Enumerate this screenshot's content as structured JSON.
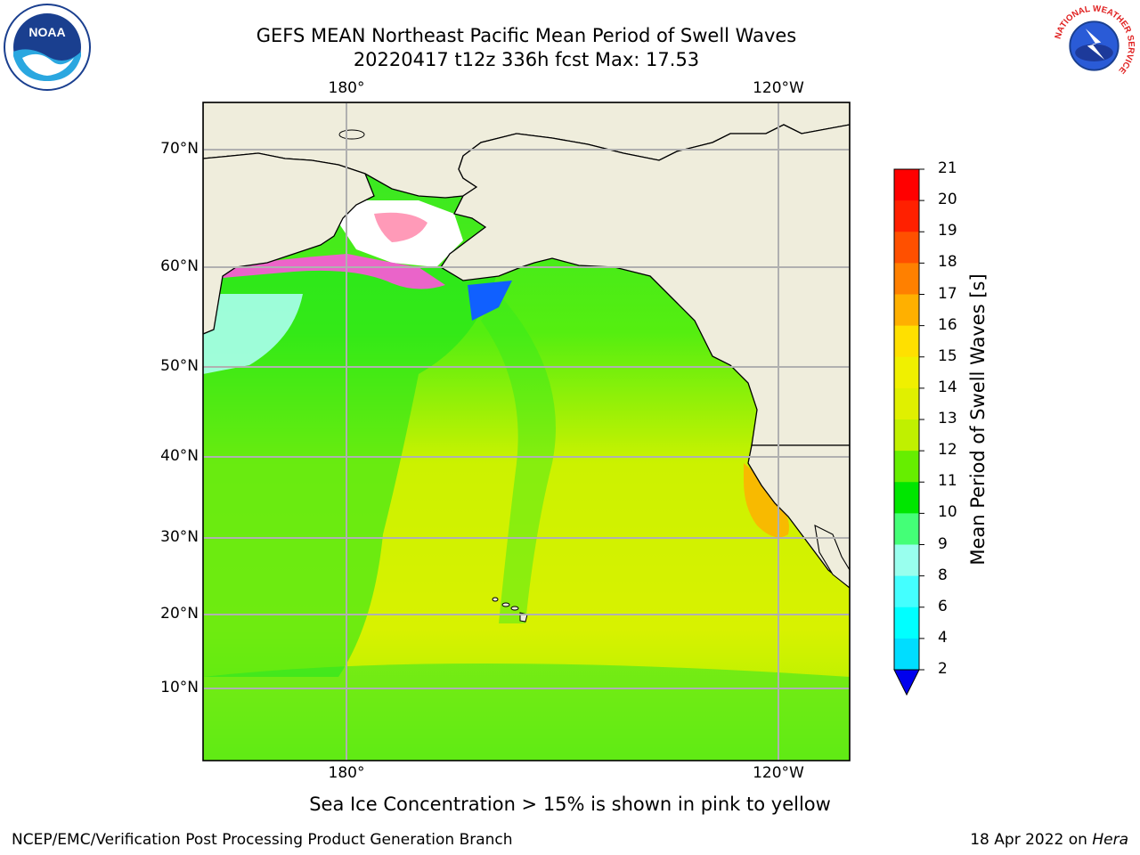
{
  "title_line1": "GEFS MEAN Northeast Pacific Mean Period of Swell Waves",
  "title_line2": "20220417 t12z 336h fcst   Max: 17.53",
  "lon_labels": {
    "top_180": "180°",
    "top_120w": "120°W",
    "bottom_180": "180°",
    "bottom_120w": "120°W"
  },
  "lat_labels": [
    "70°N",
    "60°N",
    "50°N",
    "40°N",
    "30°N",
    "20°N",
    "10°N"
  ],
  "colorbar": {
    "label": "Mean Period of Swell Waves [s]",
    "ticks": [
      "21",
      "20",
      "19",
      "18",
      "17",
      "16",
      "15",
      "14",
      "13",
      "12",
      "11",
      "10",
      "9",
      "8",
      "6",
      "4",
      "2"
    ],
    "colors": [
      "#ff0000",
      "#ff2000",
      "#ff5000",
      "#ff8000",
      "#ffb000",
      "#ffe000",
      "#f0f000",
      "#e0f000",
      "#c0f000",
      "#66ee00",
      "#00e600",
      "#44ff77",
      "#99ffee",
      "#44ffff",
      "#00ffff",
      "#00ddff",
      "#0070ff"
    ],
    "extend_color": "#0000ee"
  },
  "caption": "Sea Ice Concentration > 15% is shown in pink to yellow",
  "footer_left": "NCEP/EMC/Verification Post Processing Product Generation Branch",
  "footer_right_date": "18 Apr 2022 on ",
  "footer_right_machine": "Hera",
  "logos": {
    "noaa_text": "NOAA",
    "nws_ring_text": "NATIONAL WEATHER SERVICE"
  }
}
